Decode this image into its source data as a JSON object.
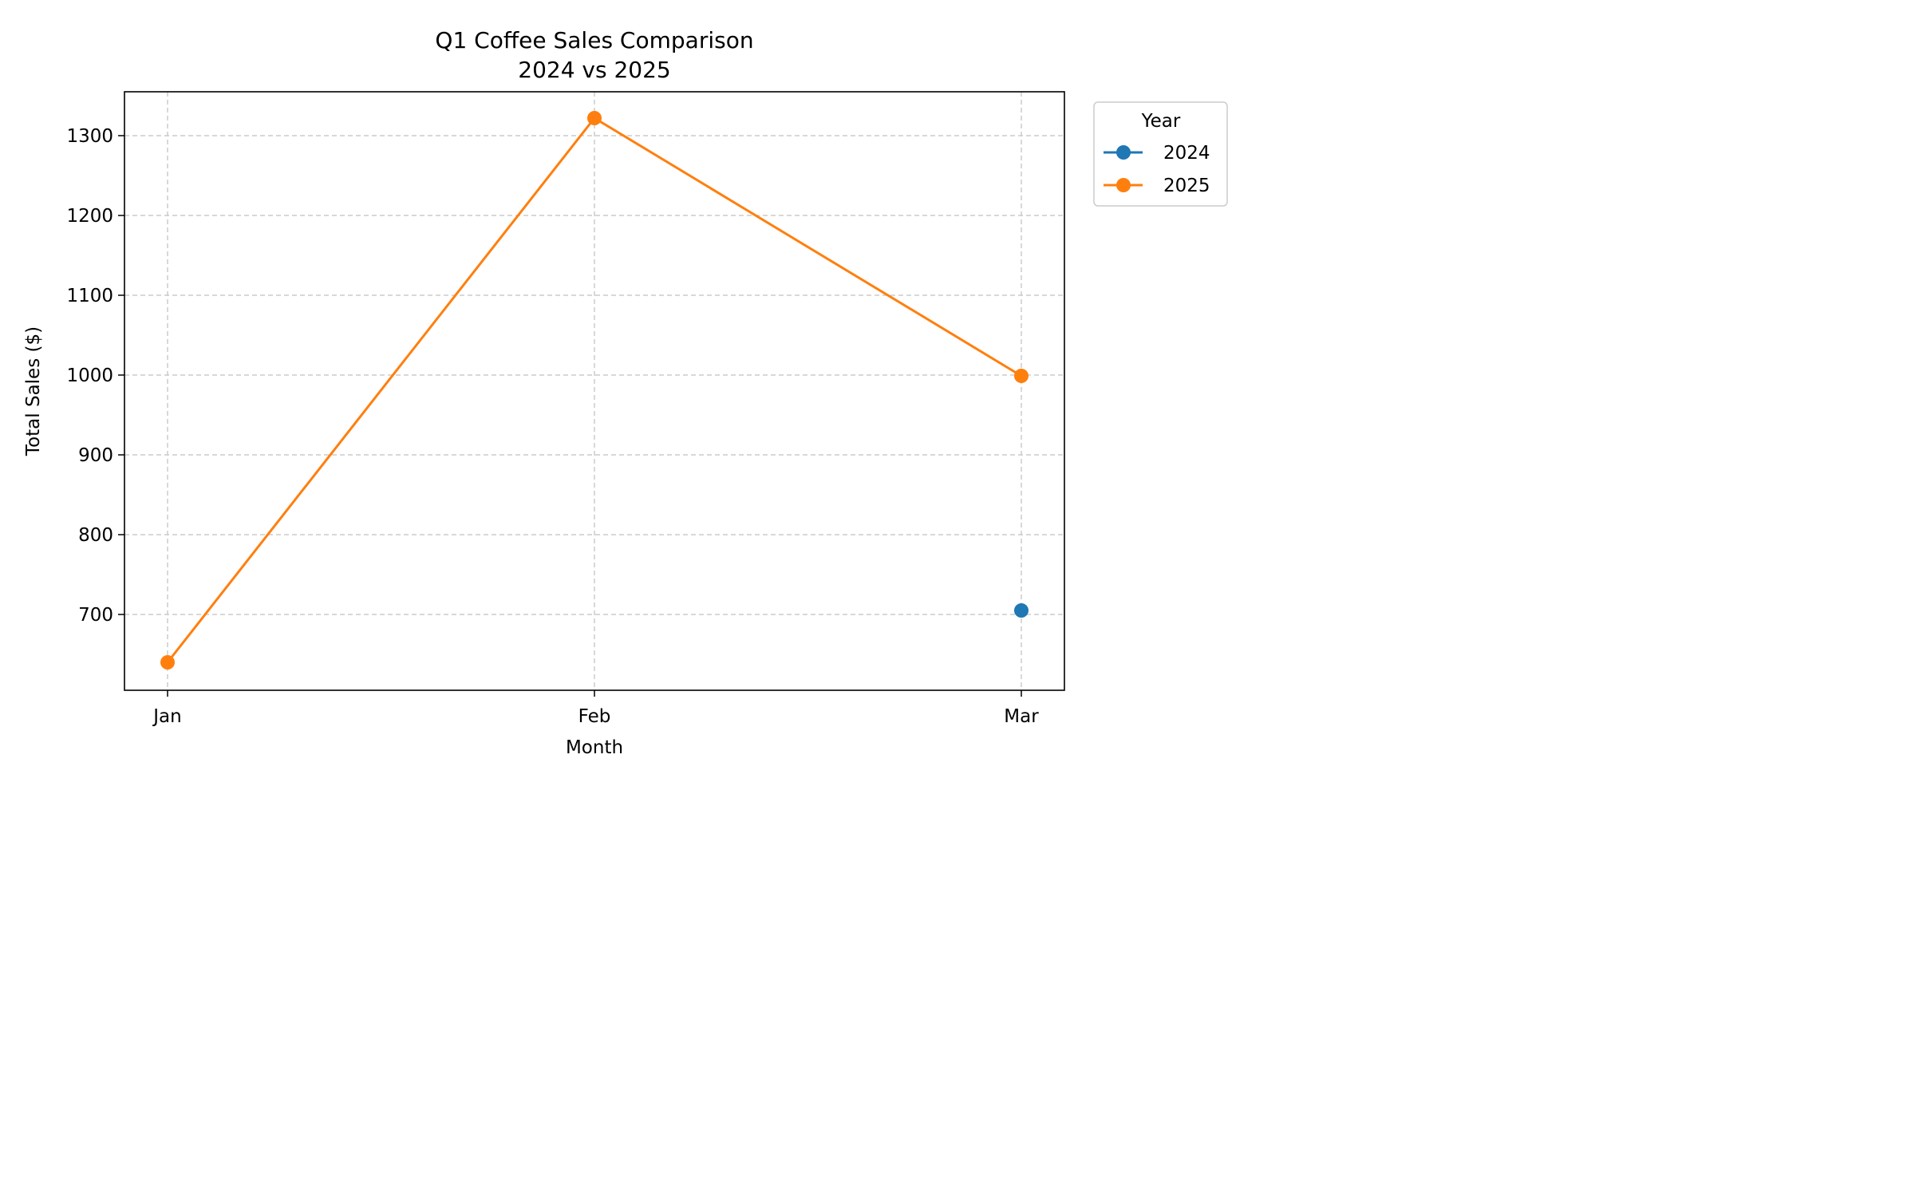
{
  "chart_data": {
    "type": "line",
    "title": "Q1 Coffee Sales Comparison",
    "subtitle": "2024 vs 2025",
    "xlabel": "Month",
    "ylabel": "Total Sales ($)",
    "categories": [
      "Jan",
      "Feb",
      "Mar"
    ],
    "ylim": [
      605,
      1355
    ],
    "yticks": [
      700,
      800,
      900,
      1000,
      1100,
      1200,
      1300
    ],
    "grid": true,
    "legend": {
      "title": "Year",
      "placement": "outside-top-right"
    },
    "series": [
      {
        "name": "2024",
        "color": "#1f77b4",
        "values": [
          null,
          null,
          705
        ]
      },
      {
        "name": "2025",
        "color": "#ff7f0e",
        "values": [
          640,
          1322,
          999
        ]
      }
    ]
  }
}
